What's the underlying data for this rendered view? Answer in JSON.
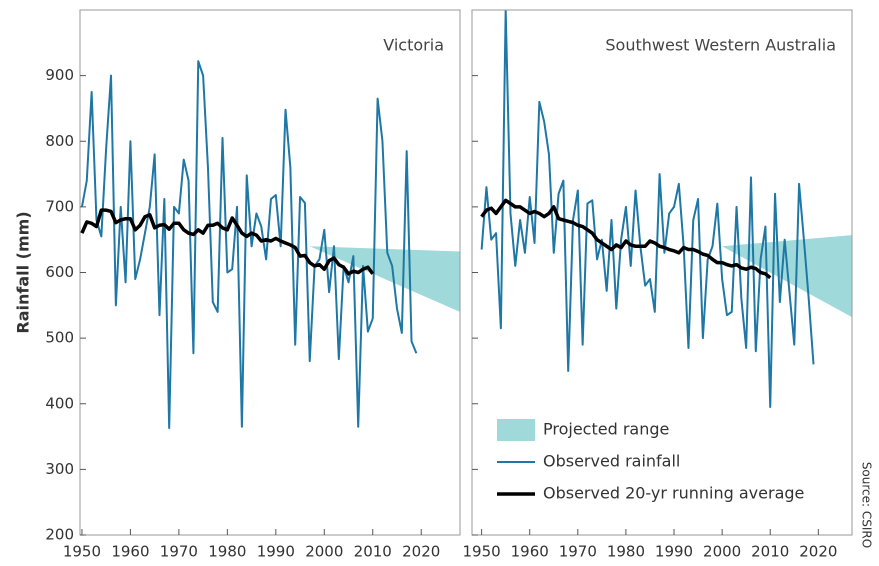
{
  "chart_data": [
    {
      "type": "line",
      "title": "Victoria",
      "y_label": "Rainfall (mm)",
      "xlim": [
        1949.6,
        2028
      ],
      "xticks": [
        1950,
        1960,
        1970,
        1980,
        1990,
        2000,
        2010,
        2020
      ],
      "ylim": [
        200,
        1000
      ],
      "yticks": [
        200,
        300,
        400,
        500,
        600,
        700,
        800,
        900
      ],
      "series": [
        {
          "type": "band",
          "color": "#9fd9d9",
          "x": [
            1997,
            2028
          ],
          "upper": [
            640,
            632
          ],
          "lower": [
            640,
            540
          ]
        },
        {
          "color": "#1f77a6",
          "x": [
            1950,
            1951,
            1952,
            1953,
            1954,
            1955,
            1956,
            1957,
            1958,
            1959,
            1960,
            1961,
            1962,
            1963,
            1964,
            1965,
            1966,
            1967,
            1968,
            1969,
            1970,
            1971,
            1972,
            1973,
            1974,
            1975,
            1976,
            1977,
            1978,
            1979,
            1980,
            1981,
            1982,
            1983,
            1984,
            1985,
            1986,
            1987,
            1988,
            1989,
            1990,
            1991,
            1992,
            1993,
            1994,
            1995,
            1996,
            1997,
            1998,
            1999,
            2000,
            2001,
            2002,
            2003,
            2004,
            2005,
            2006,
            2007,
            2008,
            2009,
            2010,
            2011,
            2012,
            2013,
            2014,
            2015,
            2016,
            2017,
            2018,
            2019
          ],
          "values": [
            700,
            740,
            875,
            680,
            655,
            790,
            900,
            550,
            700,
            585,
            800,
            590,
            620,
            660,
            700,
            780,
            535,
            712,
            363,
            700,
            690,
            772,
            740,
            477,
            922,
            900,
            760,
            555,
            540,
            805,
            600,
            605,
            700,
            365,
            748,
            640,
            690,
            670,
            620,
            712,
            718,
            640,
            848,
            760,
            490,
            715,
            706,
            465,
            610,
            620,
            665,
            570,
            640,
            468,
            610,
            585,
            625,
            365,
            610,
            510,
            530,
            865,
            800,
            630,
            610,
            545,
            508,
            785,
            495,
            477
          ]
        },
        {
          "color": "#000000",
          "x": [
            1950,
            1951,
            1952,
            1953,
            1954,
            1955,
            1956,
            1957,
            1958,
            1959,
            1960,
            1961,
            1962,
            1963,
            1964,
            1965,
            1966,
            1967,
            1968,
            1969,
            1970,
            1971,
            1972,
            1973,
            1974,
            1975,
            1976,
            1977,
            1978,
            1979,
            1980,
            1981,
            1982,
            1983,
            1984,
            1985,
            1986,
            1987,
            1988,
            1989,
            1990,
            1991,
            1992,
            1993,
            1994,
            1995,
            1996,
            1997,
            1998,
            1999,
            2000,
            2001,
            2002,
            2003,
            2004,
            2005,
            2006,
            2007,
            2008,
            2009,
            2010
          ],
          "values": [
            660,
            677,
            675,
            670,
            695,
            695,
            693,
            676,
            680,
            682,
            682,
            665,
            672,
            685,
            688,
            668,
            672,
            673,
            666,
            675,
            675,
            665,
            660,
            658,
            665,
            660,
            672,
            672,
            675,
            668,
            665,
            683,
            672,
            660,
            655,
            660,
            657,
            648,
            650,
            648,
            652,
            648,
            645,
            642,
            638,
            625,
            626,
            615,
            610,
            612,
            605,
            618,
            622,
            612,
            608,
            598,
            602,
            600,
            605,
            608,
            598
          ]
        }
      ]
    },
    {
      "type": "line",
      "title": "Southwest Western Australia",
      "legend": "lower right",
      "source": "Source: CSIRO",
      "xlim": [
        1948,
        2027
      ],
      "xticks": [
        1950,
        1960,
        1970,
        1980,
        1990,
        2000,
        2010,
        2020
      ],
      "ylim": [
        200,
        1000
      ],
      "yticks": [
        200,
        300,
        400,
        500,
        600,
        700,
        800,
        900
      ],
      "series": [
        {
          "name": "Projected range",
          "type": "band",
          "color": "#9fd9d9",
          "x": [
            2000,
            2027
          ],
          "upper": [
            640,
            657
          ],
          "lower": [
            640,
            532
          ]
        },
        {
          "name": "Observed rainfall",
          "color": "#1f77a6",
          "x": [
            1950,
            1951,
            1952,
            1953,
            1954,
            1955,
            1956,
            1957,
            1958,
            1959,
            1960,
            1961,
            1962,
            1963,
            1964,
            1965,
            1966,
            1967,
            1968,
            1969,
            1970,
            1971,
            1972,
            1973,
            1974,
            1975,
            1976,
            1977,
            1978,
            1979,
            1980,
            1981,
            1982,
            1983,
            1984,
            1985,
            1986,
            1987,
            1988,
            1989,
            1990,
            1991,
            1992,
            1993,
            1994,
            1995,
            1996,
            1997,
            1998,
            1999,
            2000,
            2001,
            2002,
            2003,
            2004,
            2005,
            2006,
            2007,
            2008,
            2009,
            2010,
            2011,
            2012,
            2013,
            2014,
            2015,
            2016,
            2017,
            2018,
            2019
          ],
          "values": [
            635,
            730,
            650,
            660,
            515,
            1000,
            690,
            610,
            680,
            630,
            715,
            645,
            860,
            830,
            780,
            630,
            720,
            740,
            450,
            680,
            725,
            490,
            705,
            710,
            620,
            650,
            572,
            680,
            545,
            650,
            700,
            610,
            725,
            640,
            580,
            590,
            540,
            750,
            630,
            690,
            700,
            735,
            640,
            485,
            680,
            712,
            500,
            620,
            640,
            705,
            590,
            535,
            540,
            700,
            560,
            485,
            745,
            480,
            620,
            670,
            395,
            720,
            555,
            650,
            570,
            490,
            735,
            650,
            560,
            460
          ]
        },
        {
          "name": "Observed 20-yr running average",
          "color": "#000000",
          "x": [
            1950,
            1951,
            1952,
            1953,
            1954,
            1955,
            1956,
            1957,
            1958,
            1959,
            1960,
            1961,
            1962,
            1963,
            1964,
            1965,
            1966,
            1967,
            1968,
            1969,
            1970,
            1971,
            1972,
            1973,
            1974,
            1975,
            1976,
            1977,
            1978,
            1979,
            1980,
            1981,
            1982,
            1983,
            1984,
            1985,
            1986,
            1987,
            1988,
            1989,
            1990,
            1991,
            1992,
            1993,
            1994,
            1995,
            1996,
            1997,
            1998,
            1999,
            2000,
            2001,
            2002,
            2003,
            2004,
            2005,
            2006,
            2007,
            2008,
            2009,
            2010
          ],
          "values": [
            685,
            695,
            698,
            690,
            700,
            710,
            705,
            700,
            700,
            695,
            690,
            693,
            690,
            685,
            690,
            700,
            682,
            680,
            678,
            676,
            672,
            670,
            665,
            660,
            650,
            645,
            640,
            635,
            642,
            638,
            648,
            642,
            640,
            640,
            640,
            648,
            645,
            640,
            638,
            635,
            633,
            630,
            638,
            635,
            635,
            632,
            628,
            626,
            620,
            615,
            615,
            612,
            610,
            612,
            607,
            605,
            608,
            606,
            600,
            598,
            592
          ]
        }
      ]
    }
  ]
}
